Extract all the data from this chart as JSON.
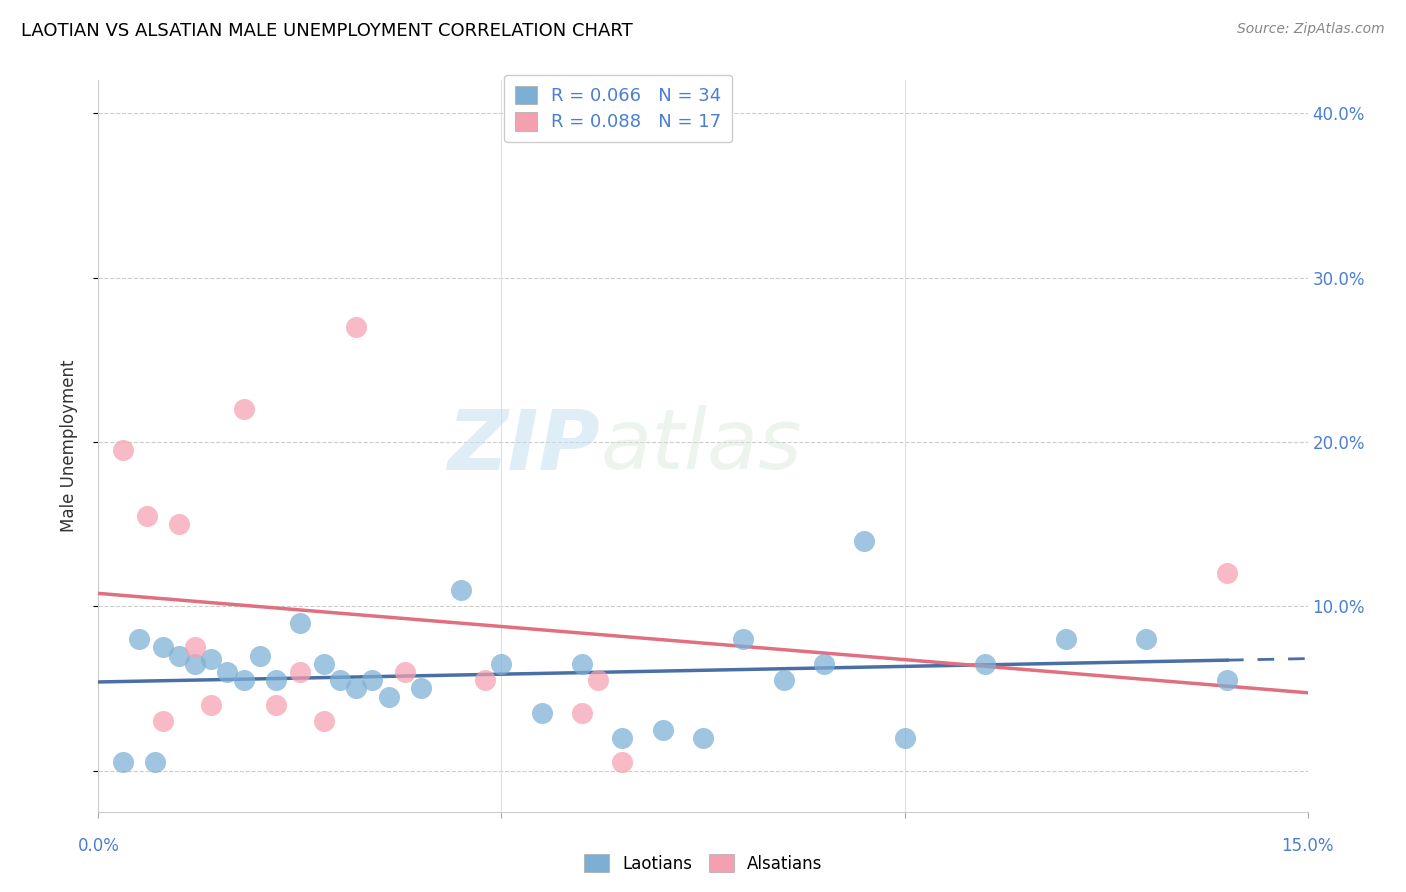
{
  "title": "LAOTIAN VS ALSATIAN MALE UNEMPLOYMENT CORRELATION CHART",
  "source": "Source: ZipAtlas.com",
  "ylabel": "Male Unemployment",
  "yticks": [
    0.0,
    0.1,
    0.2,
    0.3,
    0.4
  ],
  "ytick_labels": [
    "",
    "10.0%",
    "20.0%",
    "30.0%",
    "40.0%"
  ],
  "xlim": [
    0.0,
    0.15
  ],
  "ylim": [
    -0.025,
    0.42
  ],
  "laotian_R": 0.066,
  "laotian_N": 34,
  "alsatian_R": 0.088,
  "alsatian_N": 17,
  "laotian_color": "#7bafd4",
  "alsatian_color": "#f4a0b0",
  "laotian_line_color": "#4a6fa5",
  "alsatian_line_color": "#e07080",
  "watermark_zip": "ZIP",
  "watermark_atlas": "atlas",
  "laotian_x": [
    0.005,
    0.008,
    0.01,
    0.012,
    0.014,
    0.016,
    0.018,
    0.02,
    0.022,
    0.025,
    0.028,
    0.03,
    0.032,
    0.034,
    0.036,
    0.04,
    0.045,
    0.05,
    0.055,
    0.06,
    0.065,
    0.07,
    0.075,
    0.08,
    0.085,
    0.09,
    0.095,
    0.1,
    0.11,
    0.12,
    0.13,
    0.14,
    0.007,
    0.003
  ],
  "laotian_y": [
    0.08,
    0.075,
    0.07,
    0.065,
    0.068,
    0.06,
    0.055,
    0.07,
    0.055,
    0.09,
    0.065,
    0.055,
    0.05,
    0.055,
    0.045,
    0.05,
    0.11,
    0.065,
    0.035,
    0.065,
    0.02,
    0.025,
    0.02,
    0.08,
    0.055,
    0.065,
    0.14,
    0.02,
    0.065,
    0.08,
    0.08,
    0.055,
    0.005,
    0.005
  ],
  "alsatian_x": [
    0.003,
    0.006,
    0.008,
    0.01,
    0.012,
    0.014,
    0.018,
    0.022,
    0.025,
    0.028,
    0.032,
    0.038,
    0.048,
    0.06,
    0.062,
    0.065,
    0.14
  ],
  "alsatian_y": [
    0.195,
    0.155,
    0.03,
    0.15,
    0.075,
    0.04,
    0.22,
    0.04,
    0.06,
    0.03,
    0.27,
    0.06,
    0.055,
    0.035,
    0.055,
    0.005,
    0.12
  ],
  "tick_color": "#4a7fd4",
  "title_fontsize": 13,
  "source_fontsize": 10,
  "axis_label_fontsize": 12,
  "legend_fontsize": 13
}
